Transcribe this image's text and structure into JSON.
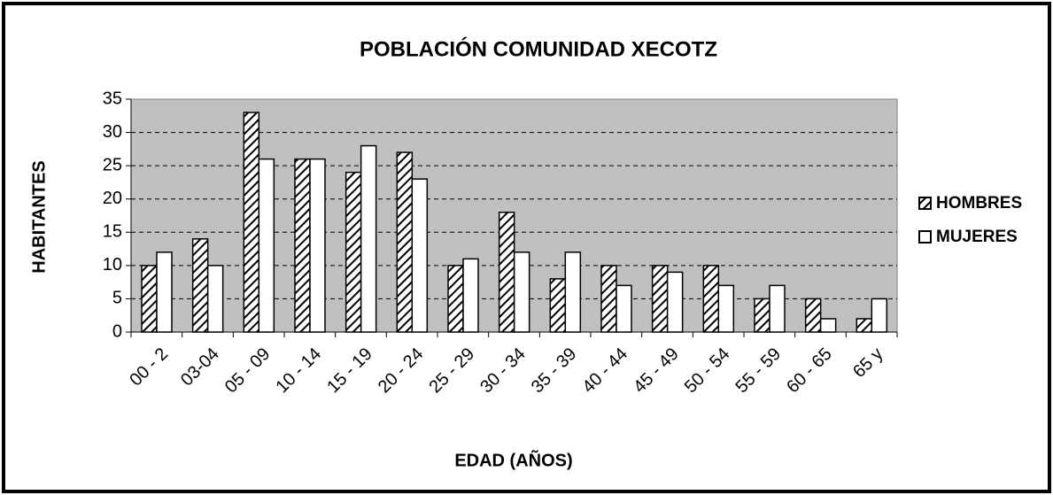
{
  "chart_data": {
    "type": "bar",
    "title": "POBLACIÓN COMUNIDAD XECOTZ",
    "x_label": "EDAD (AÑOS)",
    "y_label": "HABITANTES",
    "categories": [
      "00 - 2",
      "03-04",
      "05 - 09",
      "10 - 14",
      "15 - 19",
      "20 - 24",
      "25 - 29",
      "30 - 34",
      "35 - 39",
      "40 - 44",
      "45 - 49",
      "50 - 54",
      "55 - 59",
      "60 - 65",
      "65 y"
    ],
    "series": [
      {
        "name": "HOMBRES",
        "color": "hatch",
        "values": [
          10,
          14,
          33,
          26,
          24,
          27,
          10,
          18,
          8,
          10,
          10,
          10,
          5,
          5,
          2
        ]
      },
      {
        "name": "MUJERES",
        "color": "#ffffff",
        "values": [
          12,
          10,
          26,
          26,
          28,
          23,
          11,
          12,
          12,
          7,
          9,
          7,
          7,
          2,
          5
        ]
      }
    ],
    "ylim": [
      0,
      35
    ],
    "yticks": [
      0,
      5,
      10,
      15,
      20,
      25,
      30,
      35
    ],
    "grid": true,
    "plot_background": "#c0c0c0",
    "legend": "right"
  }
}
